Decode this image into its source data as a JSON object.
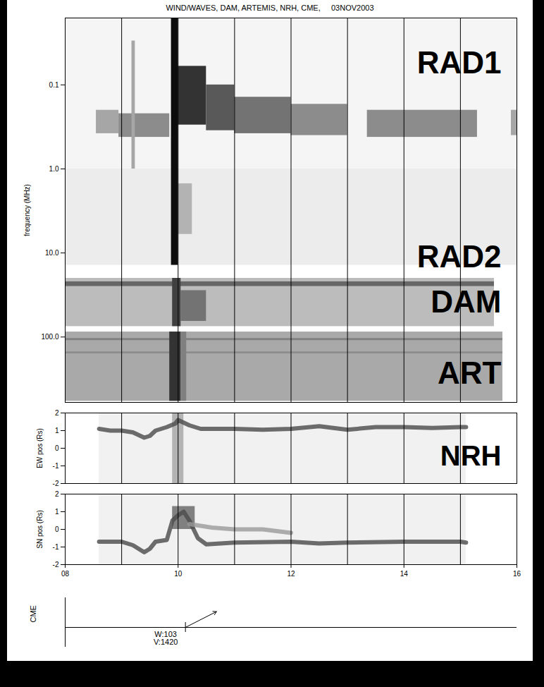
{
  "chart_data": [
    {
      "type": "spectrogram",
      "title": "WIND/WAVES, DAM, ARTEMIS, NRH, CME,     03NOV2003",
      "ylabel": "frequency (MHz)",
      "log": "y",
      "tick_labels": "y",
      "xlim": [
        8,
        16
      ],
      "ylim": [
        0.016,
        600
      ],
      "yticks": [
        0.1,
        {
          "value": 1,
          "label": "1.0"
        },
        {
          "value": 10,
          "label": "10.0"
        },
        {
          "value": 100,
          "label": "100.0"
        }
      ],
      "hour_lines": [
        9,
        10,
        11,
        12,
        13,
        14,
        15
      ],
      "level_lim": [
        0,
        1
      ],
      "receivers": [
        {
          "name": "RAD1",
          "x": [
            8,
            16
          ],
          "y": [
            0.016,
            1
          ],
          "color": "#f5f5f5"
        },
        {
          "name": "RAD2",
          "x": [
            8,
            16
          ],
          "y": [
            1,
            14
          ],
          "color": "#ececec"
        },
        {
          "name": "DAM",
          "x": [
            8,
            15.6
          ],
          "y": [
            20,
            75
          ],
          "color": "#bcbcbc"
        },
        {
          "name": "ART",
          "x": [
            8,
            15.75
          ],
          "y": [
            87,
            580
          ],
          "color": "#a9a9a9"
        }
      ],
      "emission": [
        {
          "x": [
            8.55,
            8.95
          ],
          "y": [
            0.2,
            0.38
          ],
          "level": 0.35
        },
        {
          "x": [
            8.95,
            9.85
          ],
          "y": [
            0.22,
            0.42
          ],
          "level": 0.45
        },
        {
          "x": [
            9.18,
            9.24
          ],
          "y": [
            0.03,
            1
          ],
          "level": 0.35
        },
        {
          "x": [
            10.0,
            10.5
          ],
          "y": [
            0.06,
            0.3
          ],
          "level": 0.8
        },
        {
          "x": [
            10.5,
            11.0
          ],
          "y": [
            0.1,
            0.35
          ],
          "level": 0.65
        },
        {
          "x": [
            11.0,
            12.0
          ],
          "y": [
            0.14,
            0.38
          ],
          "level": 0.55
        },
        {
          "x": [
            12.0,
            13.0
          ],
          "y": [
            0.17,
            0.4
          ],
          "level": 0.45
        },
        {
          "x": [
            13.35,
            15.3
          ],
          "y": [
            0.2,
            0.42
          ],
          "level": 0.45
        },
        {
          "x": [
            15.9,
            16
          ],
          "y": [
            0.2,
            0.4
          ],
          "level": 0.35
        },
        {
          "x": [
            10.0,
            10.25
          ],
          "y": [
            1.5,
            6
          ],
          "level": 0.3
        },
        {
          "x": [
            8,
            15.6
          ],
          "y": [
            22,
            25
          ],
          "level": 0.6
        },
        {
          "x": [
            9.9,
            10.05
          ],
          "y": [
            20,
            75
          ],
          "level": 0.75
        },
        {
          "x": [
            10.05,
            10.5
          ],
          "y": [
            28,
            65
          ],
          "level": 0.55
        },
        {
          "x": [
            8,
            15.75
          ],
          "y": [
            104,
            110
          ],
          "level": 0.5
        },
        {
          "x": [
            8,
            15.75
          ],
          "y": [
            150,
            158
          ],
          "level": 0.45
        },
        {
          "x": [
            9.85,
            10.05
          ],
          "y": [
            87,
            580
          ],
          "level": 0.8
        },
        {
          "x": [
            10.05,
            10.15
          ],
          "y": [
            87,
            580
          ],
          "level": 0.5
        },
        {
          "x": [
            9.88,
            10.0
          ],
          "y": [
            0.016,
            14
          ],
          "level": 0.95
        }
      ]
    },
    {
      "type": "line",
      "ylabel": "EW pos (Rs)",
      "tick_labels": "y",
      "xlim": [
        8,
        16
      ],
      "ylim": [
        -2,
        2
      ],
      "yticks": [
        -2,
        -1,
        0,
        1,
        2
      ],
      "hour_lines": [
        9,
        10,
        11,
        12,
        13,
        14,
        15
      ],
      "coverage": [
        8.6,
        15.1
      ],
      "level_lim": [
        0,
        1
      ],
      "emission": [
        {
          "x": [
            9.9,
            10.1
          ],
          "y": [
            -2,
            2
          ],
          "level": 0.3
        }
      ],
      "annotation": "NRH",
      "series": [
        {
          "color": "#4a4a4a",
          "x": [
            8.6,
            8.8,
            9.0,
            9.2,
            9.4,
            9.5,
            9.6,
            9.8,
            9.95,
            10.0,
            10.2,
            10.4,
            10.6,
            11.0,
            11.5,
            12.0,
            12.5,
            13.0,
            13.5,
            14.0,
            14.5,
            15.0,
            15.1
          ],
          "values": [
            1.1,
            1.0,
            1.0,
            0.9,
            0.6,
            0.7,
            1.0,
            1.2,
            1.4,
            1.6,
            1.3,
            1.1,
            1.1,
            1.1,
            1.05,
            1.1,
            1.25,
            1.05,
            1.2,
            1.2,
            1.15,
            1.2,
            1.2
          ]
        }
      ]
    },
    {
      "type": "line",
      "ylabel": "SN pos (Rs)",
      "tick_labels": true,
      "xlim": [
        8,
        16
      ],
      "ylim": [
        -2,
        2
      ],
      "xticks": [
        {
          "value": 8,
          "label": "08"
        },
        10,
        12,
        14,
        16
      ],
      "yticks": [
        -2,
        -1,
        0,
        1,
        2
      ],
      "hour_lines": [
        9,
        10,
        11,
        12,
        13,
        14,
        15
      ],
      "coverage": [
        8.6,
        15.1
      ],
      "level_lim": [
        0,
        1
      ],
      "emission": [
        {
          "x": [
            9.9,
            10.3
          ],
          "y": [
            0,
            1.3
          ],
          "level": 0.5
        }
      ],
      "series": [
        {
          "color": "#4a4a4a",
          "x": [
            8.6,
            9.0,
            9.2,
            9.4,
            9.5,
            9.6,
            9.8,
            9.9,
            10.0,
            10.1,
            10.2,
            10.35,
            10.5,
            11.0,
            12.0,
            12.5,
            13.0,
            14.0,
            15.0,
            15.1
          ],
          "values": [
            -0.7,
            -0.7,
            -0.9,
            -1.3,
            -1.1,
            -0.7,
            -0.6,
            0.5,
            0.8,
            1.0,
            0.5,
            -0.5,
            -0.85,
            -0.75,
            -0.7,
            -0.8,
            -0.75,
            -0.7,
            -0.7,
            -0.75
          ]
        },
        {
          "color": "#9a9a9a",
          "x": [
            10.2,
            10.6,
            11.0,
            11.5,
            12.0
          ],
          "values": [
            0.3,
            0.1,
            0.0,
            0.0,
            -0.2
          ]
        }
      ]
    },
    {
      "type": "timeline",
      "ylabel": "CME",
      "xlim": [
        8,
        16
      ],
      "events": [
        {
          "x": 10.13,
          "labels": [
            "W:103",
            "V:1420"
          ]
        }
      ]
    }
  ]
}
